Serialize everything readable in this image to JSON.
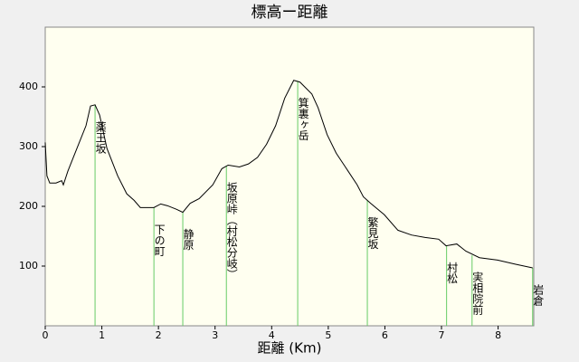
{
  "chart_data": {
    "type": "line",
    "title": "標高ー距離",
    "x_label": "距離 (Km)",
    "color": "#000000",
    "marker_color": "#66cc66",
    "background": "#fffff0",
    "xlim": [
      0,
      8.63
    ],
    "xticks": [
      0,
      1,
      2,
      3,
      4,
      5,
      6,
      7,
      8
    ],
    "ylim": [
      0,
      500
    ],
    "yticks": [
      100,
      200,
      300,
      400
    ],
    "x": [
      0,
      0.03,
      0.08,
      0.19,
      0.29,
      0.32,
      0.4,
      0.56,
      0.72,
      0.8,
      0.88,
      0.96,
      1.09,
      1.28,
      1.44,
      1.57,
      1.68,
      1.92,
      2.04,
      2.16,
      2.32,
      2.43,
      2.56,
      2.72,
      2.96,
      3.12,
      3.23,
      3.43,
      3.59,
      3.75,
      3.91,
      4.07,
      4.23,
      4.39,
      4.5,
      4.71,
      4.82,
      4.98,
      5.14,
      5.35,
      5.51,
      5.62,
      5.75,
      5.99,
      6.23,
      6.47,
      6.71,
      6.95,
      7.08,
      7.27,
      7.43,
      7.67,
      7.99,
      8.31,
      8.61
    ],
    "values": [
      307,
      251,
      239,
      239,
      243,
      236,
      259,
      297,
      335,
      368,
      370,
      353,
      297,
      251,
      221,
      210,
      198,
      198,
      204,
      201,
      195,
      190,
      205,
      213,
      236,
      263,
      269,
      266,
      271,
      282,
      304,
      335,
      381,
      411,
      408,
      388,
      365,
      320,
      289,
      259,
      236,
      216,
      205,
      186,
      160,
      152,
      148,
      145,
      134,
      137,
      125,
      114,
      110,
      103,
      97
    ],
    "markers": [
      {
        "label": "薬王坂",
        "x": 0.88,
        "y": 370
      },
      {
        "label": "下の町",
        "x": 1.92,
        "y": 198
      },
      {
        "label": "静原",
        "x": 2.43,
        "y": 190
      },
      {
        "label": "坂原峠（村松分岐）",
        "x": 3.2,
        "y": 268
      },
      {
        "label": "箕裏ヶ岳",
        "x": 4.46,
        "y": 410
      },
      {
        "label": "繁見坂",
        "x": 5.69,
        "y": 210
      },
      {
        "label": "村松",
        "x": 7.09,
        "y": 134
      },
      {
        "label": "実相院前",
        "x": 7.54,
        "y": 118
      },
      {
        "label": "岩倉",
        "x": 8.61,
        "y": 97
      }
    ]
  }
}
